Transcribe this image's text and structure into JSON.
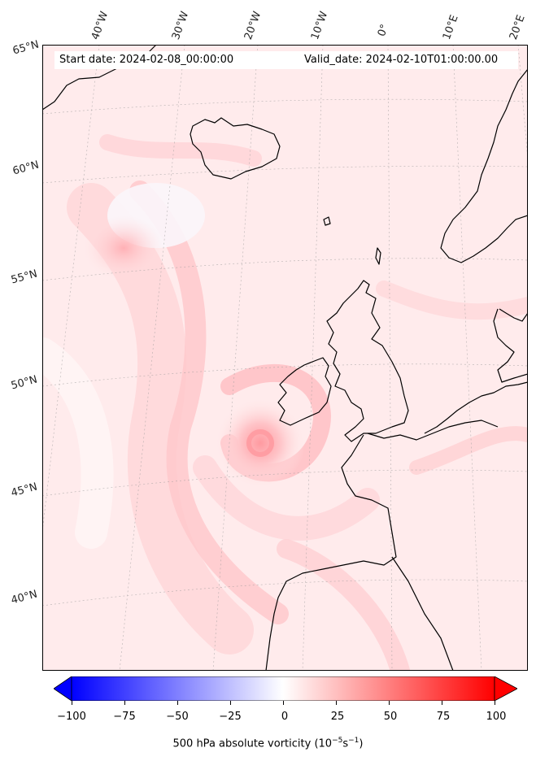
{
  "header": {
    "start_date": "Start date: 2024-02-08_00:00:00",
    "valid_date": "Valid_date: 2024-02-10T01:00:00.00"
  },
  "map": {
    "field": "500 hPa absolute vorticity",
    "region": "North Atlantic / Western Europe",
    "features": [
      "coastlines",
      "graticule",
      "filled-contours"
    ],
    "longitude_labels": [
      "40°W",
      "30°W",
      "20°W",
      "10°W",
      "0°",
      "10°E",
      "20°E"
    ],
    "latitude_labels": [
      "65°N",
      "60°N",
      "55°N",
      "50°N",
      "45°N",
      "40°N"
    ],
    "colors": {
      "negative_max": "#0000ff",
      "zero": "#ffffff",
      "positive_max": "#ff0000",
      "background_tint": "#fff0f0"
    }
  },
  "colorbar": {
    "ticks": [
      "−100",
      "−75",
      "−50",
      "−25",
      "0",
      "25",
      "50",
      "75",
      "100"
    ],
    "range": [
      -100,
      100
    ],
    "extend": "both",
    "label_main": "500 hPa absolute vorticity (10",
    "label_exp1": "−5",
    "label_mid": "s",
    "label_exp2": "−1",
    "label_end": ")"
  }
}
